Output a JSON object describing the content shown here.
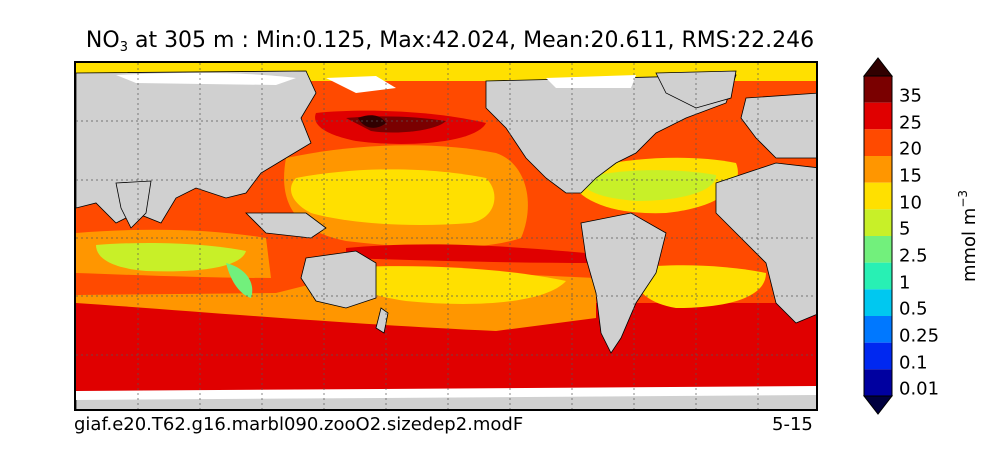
{
  "title": {
    "var": "NO",
    "var_sub": "3",
    "rest": " at 305 m : Min:0.125, Max:42.024, Mean:20.611, RMS:22.246"
  },
  "footer": {
    "case_name": "giaf.e20.T62.g16.marbl090.zooO2.sizedep2.modF",
    "years": "5-15"
  },
  "colorbar": {
    "unit_text": "mmol m",
    "unit_exp": "−3",
    "labels": [
      "35",
      "25",
      "20",
      "15",
      "10",
      "5",
      "2.5",
      "1",
      "0.5",
      "0.25",
      "0.1",
      "0.01"
    ],
    "colors": [
      "#7a0000",
      "#e00000",
      "#ff4a00",
      "#ff9600",
      "#ffe000",
      "#c8f028",
      "#72f07c",
      "#28f0b4",
      "#00c8f0",
      "#0078ff",
      "#0028f0",
      "#0000a0"
    ],
    "under_color": "#000040",
    "over_color": "#300000"
  },
  "map": {
    "land_color": "#d0d0d0",
    "ice_color": "#ffffff",
    "grid_style": "dashed"
  }
}
